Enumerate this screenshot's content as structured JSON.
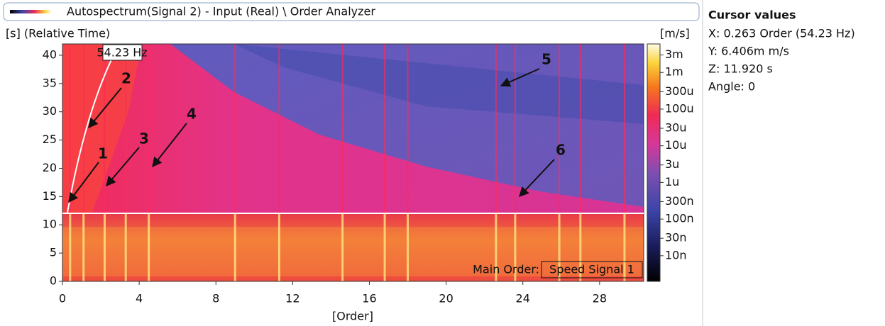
{
  "chart_data": {
    "type": "heatmap",
    "title": "Autospectrum(Signal 2) - Input (Real) \\ Order Analyzer",
    "xlabel": "[Order]",
    "ylabel": "[s] (Relative Time)",
    "colorbar_label": "[m/s]",
    "xlim": [
      0,
      30.3
    ],
    "ylim": [
      0,
      42
    ],
    "xticks": [
      0,
      4,
      8,
      12,
      16,
      20,
      24,
      28
    ],
    "yticks": [
      0,
      5,
      10,
      15,
      20,
      25,
      30,
      35,
      40
    ],
    "colorbar_scale": "log",
    "colorbar_lim": [
      2e-09,
      0.006
    ],
    "colorbar_ticks": [
      {
        "value": 0.003,
        "label": "3m"
      },
      {
        "value": 0.001,
        "label": "1m"
      },
      {
        "value": 0.0003,
        "label": "300u"
      },
      {
        "value": 0.0001,
        "label": "100u"
      },
      {
        "value": 3e-05,
        "label": "30u"
      },
      {
        "value": 1e-05,
        "label": "10u"
      },
      {
        "value": 3e-06,
        "label": "3u"
      },
      {
        "value": 1e-06,
        "label": "1u"
      },
      {
        "value": 3e-07,
        "label": "300n"
      },
      {
        "value": 1e-07,
        "label": "100n"
      },
      {
        "value": 3e-08,
        "label": "30n"
      },
      {
        "value": 1e-08,
        "label": "10n"
      }
    ],
    "annotations": [
      "1",
      "2",
      "3",
      "4",
      "5",
      "6"
    ],
    "cursor_label": "54.23 Hz",
    "main_order_label": "Main Order:",
    "main_order_value": "Speed Signal 1"
  },
  "cursor_panel": {
    "title": "Cursor values",
    "lines": [
      "X: 0.263 Order (54.23 Hz)",
      "Y: 6.406m m/s",
      "Z: 11.920 s",
      "Angle: 0"
    ]
  }
}
